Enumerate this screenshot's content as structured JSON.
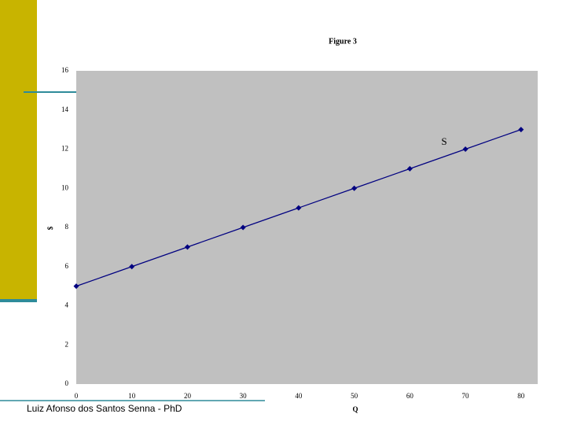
{
  "chart_data": {
    "type": "line",
    "title": "Figure 3",
    "x_label": "Q",
    "y_label": "$",
    "annotation": "S",
    "x": [
      0,
      10,
      20,
      30,
      40,
      50,
      60,
      70,
      80
    ],
    "series": [
      {
        "name": "S",
        "color": "#000080",
        "values": [
          5,
          6,
          7,
          8,
          9,
          10,
          11,
          12,
          13
        ]
      }
    ],
    "xlim": [
      0,
      83
    ],
    "xticks": [
      0,
      10,
      20,
      30,
      40,
      50,
      60,
      70,
      80
    ],
    "ylim": [
      0,
      16
    ],
    "yticks": [
      0,
      2,
      4,
      6,
      8,
      10,
      12,
      14,
      16
    ],
    "grid": false
  },
  "footer": "Luiz Afonso dos Santos Senna - PhD"
}
